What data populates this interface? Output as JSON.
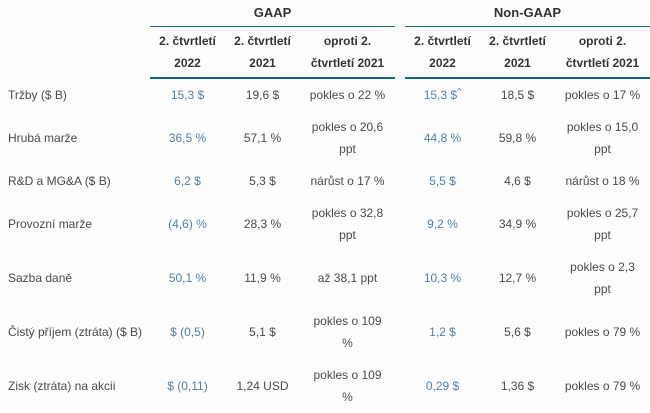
{
  "table": {
    "group_headers": [
      {
        "label": "GAAP"
      },
      {
        "label": "Non-GAAP"
      }
    ],
    "column_headers": [
      "2. čtvrtletí 2022",
      "2. čtvrtletí 2021",
      "oproti 2. čtvrtletí 2021"
    ],
    "rows": [
      {
        "label": "Tržby ($ B)",
        "gaap": [
          {
            "text": "15,3 $"
          },
          {
            "text": "19,6 $"
          },
          {
            "text": "pokles o 22 %"
          }
        ],
        "non_gaap": [
          {
            "text": "15,3 $",
            "sup": "^"
          },
          {
            "text": "18,5 $"
          },
          {
            "text": "pokles o 17 %"
          }
        ]
      },
      {
        "label": "Hrubá marže",
        "gaap": [
          {
            "text": "36,5 %"
          },
          {
            "text": "57,1 %"
          },
          {
            "text": "pokles o 20,6 ppt"
          }
        ],
        "non_gaap": [
          {
            "text": "44,8 %"
          },
          {
            "text": "59,8 %"
          },
          {
            "text": "pokles o 15,0 ppt"
          }
        ]
      },
      {
        "label": "R&D a MG&A ($ B)",
        "gaap": [
          {
            "text": "6,2 $"
          },
          {
            "text": "5,3 $"
          },
          {
            "text": "nárůst o 17 %"
          }
        ],
        "non_gaap": [
          {
            "text": "5,5 $"
          },
          {
            "text": "4,6 $"
          },
          {
            "text": "nárůst o 18 %"
          }
        ]
      },
      {
        "label": "Provozní marže",
        "gaap": [
          {
            "text": "(4,6) %"
          },
          {
            "text": "28,3 %"
          },
          {
            "text": "pokles o 32,8 ppt"
          }
        ],
        "non_gaap": [
          {
            "text": "9,2 %"
          },
          {
            "text": "34,9 %"
          },
          {
            "text": "pokles o 25,7 ppt"
          }
        ]
      },
      {
        "label": "Sazba daně",
        "gaap": [
          {
            "text": "50,1 %"
          },
          {
            "text": "11,9 %"
          },
          {
            "text": "až 38,1 ppt"
          }
        ],
        "non_gaap": [
          {
            "text": "10,3 %"
          },
          {
            "text": "12,7 %"
          },
          {
            "text": "pokles o 2,3 ppt"
          }
        ]
      },
      {
        "label": "Čistý příjem (ztráta) ($ B)",
        "gaap": [
          {
            "text": "$ (0,5)"
          },
          {
            "text": "5,1 $"
          },
          {
            "text": "pokles o 109 %"
          }
        ],
        "non_gaap": [
          {
            "text": "1,2 $"
          },
          {
            "text": "5,6 $"
          },
          {
            "text": "pokles o 79 %"
          }
        ]
      },
      {
        "label": "Zisk (ztráta) na akcii",
        "gaap": [
          {
            "text": "$ (0,11)"
          },
          {
            "text": "1,24 USD"
          },
          {
            "text": "pokles o 109 %"
          }
        ],
        "non_gaap": [
          {
            "text": "0,29 $"
          },
          {
            "text": "1,36 $"
          },
          {
            "text": "pokles o 79 %"
          }
        ]
      }
    ]
  },
  "colors": {
    "accent_line_thin": "#1f6f90",
    "accent_line_thick": "#146183",
    "current_quarter_value_blue": "#4e82a6",
    "body_text": "#4a4a4a",
    "header_text": "#333333",
    "background": "#fdfdfd"
  }
}
